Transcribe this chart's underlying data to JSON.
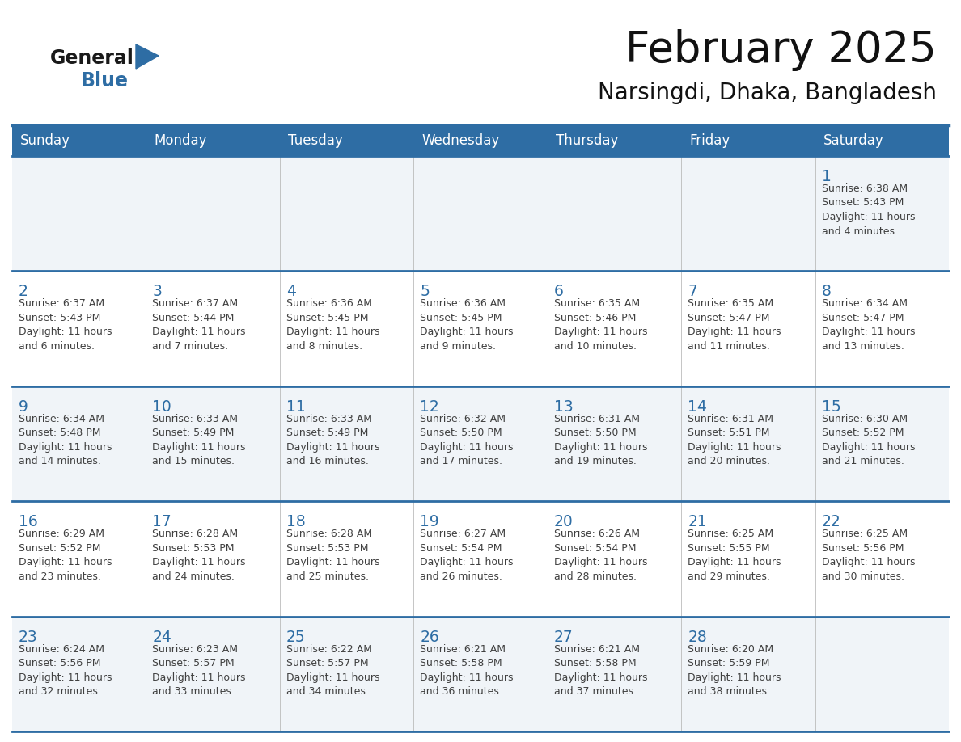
{
  "title": "February 2025",
  "subtitle": "Narsingdi, Dhaka, Bangladesh",
  "header_bg": "#2E6DA4",
  "header_text_color": "#FFFFFF",
  "day_headers": [
    "Sunday",
    "Monday",
    "Tuesday",
    "Wednesday",
    "Thursday",
    "Friday",
    "Saturday"
  ],
  "date_text_color": "#2E6DA4",
  "info_text_color": "#404040",
  "logo_general_color": "#1a1a1a",
  "logo_blue_color": "#2E6DA4",
  "row_bg_odd": "#F0F4F8",
  "row_bg_even": "#FFFFFF",
  "calendar": [
    [
      null,
      null,
      null,
      null,
      null,
      null,
      1
    ],
    [
      2,
      3,
      4,
      5,
      6,
      7,
      8
    ],
    [
      9,
      10,
      11,
      12,
      13,
      14,
      15
    ],
    [
      16,
      17,
      18,
      19,
      20,
      21,
      22
    ],
    [
      23,
      24,
      25,
      26,
      27,
      28,
      null
    ]
  ],
  "sun_data": {
    "1": {
      "rise": "6:38 AM",
      "set": "5:43 PM",
      "day": "11 hours and 4 minutes"
    },
    "2": {
      "rise": "6:37 AM",
      "set": "5:43 PM",
      "day": "11 hours and 6 minutes"
    },
    "3": {
      "rise": "6:37 AM",
      "set": "5:44 PM",
      "day": "11 hours and 7 minutes"
    },
    "4": {
      "rise": "6:36 AM",
      "set": "5:45 PM",
      "day": "11 hours and 8 minutes"
    },
    "5": {
      "rise": "6:36 AM",
      "set": "5:45 PM",
      "day": "11 hours and 9 minutes"
    },
    "6": {
      "rise": "6:35 AM",
      "set": "5:46 PM",
      "day": "11 hours and 10 minutes"
    },
    "7": {
      "rise": "6:35 AM",
      "set": "5:47 PM",
      "day": "11 hours and 11 minutes"
    },
    "8": {
      "rise": "6:34 AM",
      "set": "5:47 PM",
      "day": "11 hours and 13 minutes"
    },
    "9": {
      "rise": "6:34 AM",
      "set": "5:48 PM",
      "day": "11 hours and 14 minutes"
    },
    "10": {
      "rise": "6:33 AM",
      "set": "5:49 PM",
      "day": "11 hours and 15 minutes"
    },
    "11": {
      "rise": "6:33 AM",
      "set": "5:49 PM",
      "day": "11 hours and 16 minutes"
    },
    "12": {
      "rise": "6:32 AM",
      "set": "5:50 PM",
      "day": "11 hours and 17 minutes"
    },
    "13": {
      "rise": "6:31 AM",
      "set": "5:50 PM",
      "day": "11 hours and 19 minutes"
    },
    "14": {
      "rise": "6:31 AM",
      "set": "5:51 PM",
      "day": "11 hours and 20 minutes"
    },
    "15": {
      "rise": "6:30 AM",
      "set": "5:52 PM",
      "day": "11 hours and 21 minutes"
    },
    "16": {
      "rise": "6:29 AM",
      "set": "5:52 PM",
      "day": "11 hours and 23 minutes"
    },
    "17": {
      "rise": "6:28 AM",
      "set": "5:53 PM",
      "day": "11 hours and 24 minutes"
    },
    "18": {
      "rise": "6:28 AM",
      "set": "5:53 PM",
      "day": "11 hours and 25 minutes"
    },
    "19": {
      "rise": "6:27 AM",
      "set": "5:54 PM",
      "day": "11 hours and 26 minutes"
    },
    "20": {
      "rise": "6:26 AM",
      "set": "5:54 PM",
      "day": "11 hours and 28 minutes"
    },
    "21": {
      "rise": "6:25 AM",
      "set": "5:55 PM",
      "day": "11 hours and 29 minutes"
    },
    "22": {
      "rise": "6:25 AM",
      "set": "5:56 PM",
      "day": "11 hours and 30 minutes"
    },
    "23": {
      "rise": "6:24 AM",
      "set": "5:56 PM",
      "day": "11 hours and 32 minutes"
    },
    "24": {
      "rise": "6:23 AM",
      "set": "5:57 PM",
      "day": "11 hours and 33 minutes"
    },
    "25": {
      "rise": "6:22 AM",
      "set": "5:57 PM",
      "day": "11 hours and 34 minutes"
    },
    "26": {
      "rise": "6:21 AM",
      "set": "5:58 PM",
      "day": "11 hours and 36 minutes"
    },
    "27": {
      "rise": "6:21 AM",
      "set": "5:58 PM",
      "day": "11 hours and 37 minutes"
    },
    "28": {
      "rise": "6:20 AM",
      "set": "5:59 PM",
      "day": "11 hours and 38 minutes"
    }
  }
}
